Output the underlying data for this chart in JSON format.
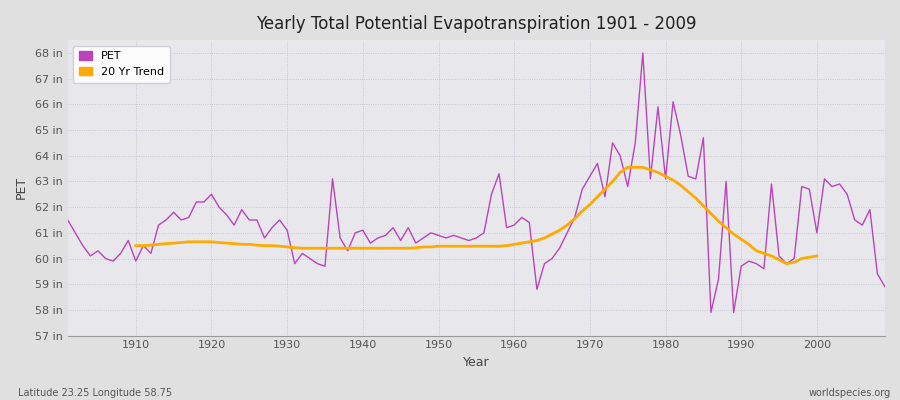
{
  "title": "Yearly Total Potential Evapotranspiration 1901 - 2009",
  "xlabel": "Year",
  "ylabel": "PET",
  "footnote_left": "Latitude 23.25 Longitude 58.75",
  "footnote_right": "worldspecies.org",
  "ylim": [
    57,
    68.5
  ],
  "ytick_labels": [
    "57 in",
    "58 in",
    "59 in",
    "60 in",
    "61 in",
    "62 in",
    "63 in",
    "64 in",
    "65 in",
    "66 in",
    "67 in",
    "68 in"
  ],
  "ytick_values": [
    57,
    58,
    59,
    60,
    61,
    62,
    63,
    64,
    65,
    66,
    67,
    68
  ],
  "fig_bg_color": "#e0e0e0",
  "plot_bg_color": "#e8e8ec",
  "pet_color": "#bb44bb",
  "trend_color": "#ffaa00",
  "legend_pet": "PET",
  "legend_trend": "20 Yr Trend",
  "years": [
    1901,
    1902,
    1903,
    1904,
    1905,
    1906,
    1907,
    1908,
    1909,
    1910,
    1911,
    1912,
    1913,
    1914,
    1915,
    1916,
    1917,
    1918,
    1919,
    1920,
    1921,
    1922,
    1923,
    1924,
    1925,
    1926,
    1927,
    1928,
    1929,
    1930,
    1931,
    1932,
    1933,
    1934,
    1935,
    1936,
    1937,
    1938,
    1939,
    1940,
    1941,
    1942,
    1943,
    1944,
    1945,
    1946,
    1947,
    1948,
    1949,
    1950,
    1951,
    1952,
    1953,
    1954,
    1955,
    1956,
    1957,
    1958,
    1959,
    1960,
    1961,
    1962,
    1963,
    1964,
    1965,
    1966,
    1967,
    1968,
    1969,
    1970,
    1971,
    1972,
    1973,
    1974,
    1975,
    1976,
    1977,
    1978,
    1979,
    1980,
    1981,
    1982,
    1983,
    1984,
    1985,
    1986,
    1987,
    1988,
    1989,
    1990,
    1991,
    1992,
    1993,
    1994,
    1995,
    1996,
    1997,
    1998,
    1999,
    2000,
    2001,
    2002,
    2003,
    2004,
    2005,
    2006,
    2007,
    2008,
    2009
  ],
  "pet_values": [
    61.5,
    61.0,
    60.5,
    60.1,
    60.3,
    60.0,
    59.9,
    60.2,
    60.7,
    59.9,
    60.5,
    60.2,
    61.3,
    61.5,
    61.8,
    61.5,
    61.6,
    62.2,
    62.2,
    62.5,
    62.0,
    61.7,
    61.3,
    61.9,
    61.5,
    61.5,
    60.8,
    61.2,
    61.5,
    61.1,
    59.8,
    60.2,
    60.0,
    59.8,
    59.7,
    63.1,
    60.8,
    60.3,
    61.0,
    61.1,
    60.6,
    60.8,
    60.9,
    61.2,
    60.7,
    61.2,
    60.6,
    60.8,
    61.0,
    60.9,
    60.8,
    60.9,
    60.8,
    60.7,
    60.8,
    61.0,
    62.5,
    63.3,
    61.2,
    61.3,
    61.6,
    61.4,
    58.8,
    59.8,
    60.0,
    60.4,
    61.0,
    61.6,
    62.7,
    63.2,
    63.7,
    62.4,
    64.5,
    64.0,
    62.8,
    64.5,
    68.0,
    63.1,
    65.9,
    63.1,
    66.1,
    64.8,
    63.2,
    63.1,
    64.7,
    57.9,
    59.2,
    63.0,
    57.9,
    59.7,
    59.9,
    59.8,
    59.6,
    62.9,
    60.1,
    59.8,
    60.0,
    62.8,
    62.7,
    61.0,
    63.1,
    62.8,
    62.9,
    62.5,
    61.5,
    61.3,
    61.9,
    59.4,
    58.9
  ],
  "trend_years": [
    1910,
    1911,
    1912,
    1913,
    1914,
    1915,
    1916,
    1917,
    1918,
    1919,
    1920,
    1921,
    1922,
    1923,
    1924,
    1925,
    1926,
    1927,
    1928,
    1929,
    1930,
    1931,
    1932,
    1933,
    1934,
    1935,
    1936,
    1937,
    1938,
    1939,
    1940,
    1941,
    1942,
    1943,
    1944,
    1945,
    1946,
    1947,
    1948,
    1949,
    1950,
    1951,
    1952,
    1953,
    1954,
    1955,
    1956,
    1957,
    1958,
    1959,
    1960,
    1961,
    1962,
    1963,
    1964,
    1965,
    1966,
    1967,
    1968,
    1969,
    1970,
    1971,
    1972,
    1973,
    1974,
    1975,
    1976,
    1977,
    1978,
    1979,
    1980,
    1981,
    1982,
    1983,
    1984,
    1985,
    1986,
    1987,
    1988,
    1989,
    1990,
    1991,
    1992,
    1993,
    1994,
    1995,
    1996,
    1997,
    1998,
    1999,
    2000
  ],
  "trend_values": [
    60.5,
    60.5,
    60.52,
    60.55,
    60.58,
    60.6,
    60.62,
    60.65,
    60.65,
    60.65,
    60.65,
    60.62,
    60.6,
    60.58,
    60.55,
    60.55,
    60.52,
    60.5,
    60.5,
    60.48,
    60.45,
    60.42,
    60.4,
    60.4,
    60.4,
    60.4,
    60.4,
    60.4,
    60.4,
    60.4,
    60.4,
    60.4,
    60.4,
    60.4,
    60.4,
    60.4,
    60.4,
    60.42,
    60.45,
    60.45,
    60.48,
    60.48,
    60.48,
    60.48,
    60.48,
    60.48,
    60.48,
    60.48,
    60.48,
    60.5,
    60.55,
    60.6,
    60.65,
    60.7,
    60.8,
    60.95,
    61.1,
    61.3,
    61.55,
    61.85,
    62.1,
    62.4,
    62.7,
    63.0,
    63.35,
    63.55,
    63.55,
    63.55,
    63.45,
    63.35,
    63.2,
    63.05,
    62.85,
    62.6,
    62.35,
    62.05,
    61.75,
    61.45,
    61.2,
    60.95,
    60.75,
    60.55,
    60.3,
    60.2,
    60.1,
    59.95,
    59.8,
    59.85,
    60.0,
    60.05,
    60.1
  ]
}
